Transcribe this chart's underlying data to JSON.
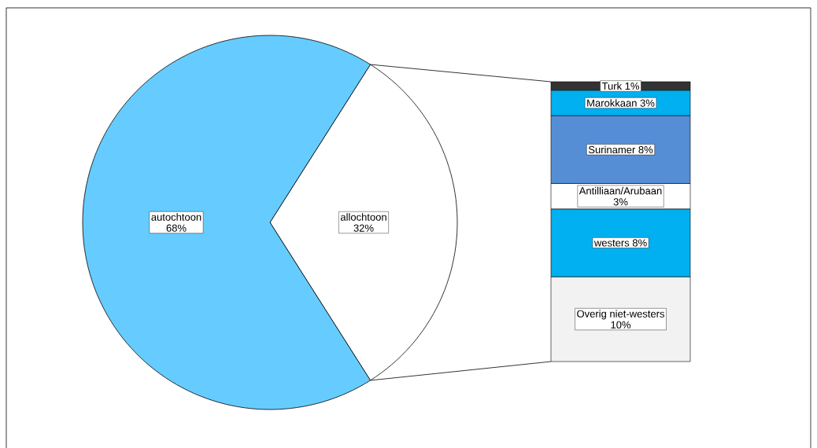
{
  "chart_data": [
    {
      "type": "pie",
      "categories": [
        "autochtoon",
        "allochtoon"
      ],
      "values": [
        68,
        32
      ],
      "colors": [
        "#66ccff",
        "#ffffff"
      ],
      "value_labels": [
        "68%",
        "32%"
      ]
    },
    {
      "type": "bar",
      "stacked": true,
      "categories": [
        null
      ],
      "series": [
        {
          "name": "Overig niet-westers",
          "color": "#f2f2f2",
          "values": [
            10
          ],
          "value_labels": [
            "10%"
          ]
        },
        {
          "name": "westers",
          "color": "#00b0f0",
          "values": [
            8
          ],
          "value_labels": [
            "8%"
          ]
        },
        {
          "name": "Antilliaan/Arubaan",
          "color": "#ffffff",
          "values": [
            3
          ],
          "value_labels": [
            "3%"
          ]
        },
        {
          "name": "Surinamer",
          "color": "#558ed5",
          "values": [
            8
          ],
          "value_labels": [
            "8%"
          ]
        },
        {
          "name": "Marokkaan",
          "color": "#00b0f0",
          "values": [
            3
          ],
          "value_labels": [
            "3%"
          ]
        },
        {
          "name": "Turk",
          "color": "#333333",
          "values": [
            1
          ],
          "value_labels": [
            "1%"
          ]
        }
      ]
    }
  ]
}
